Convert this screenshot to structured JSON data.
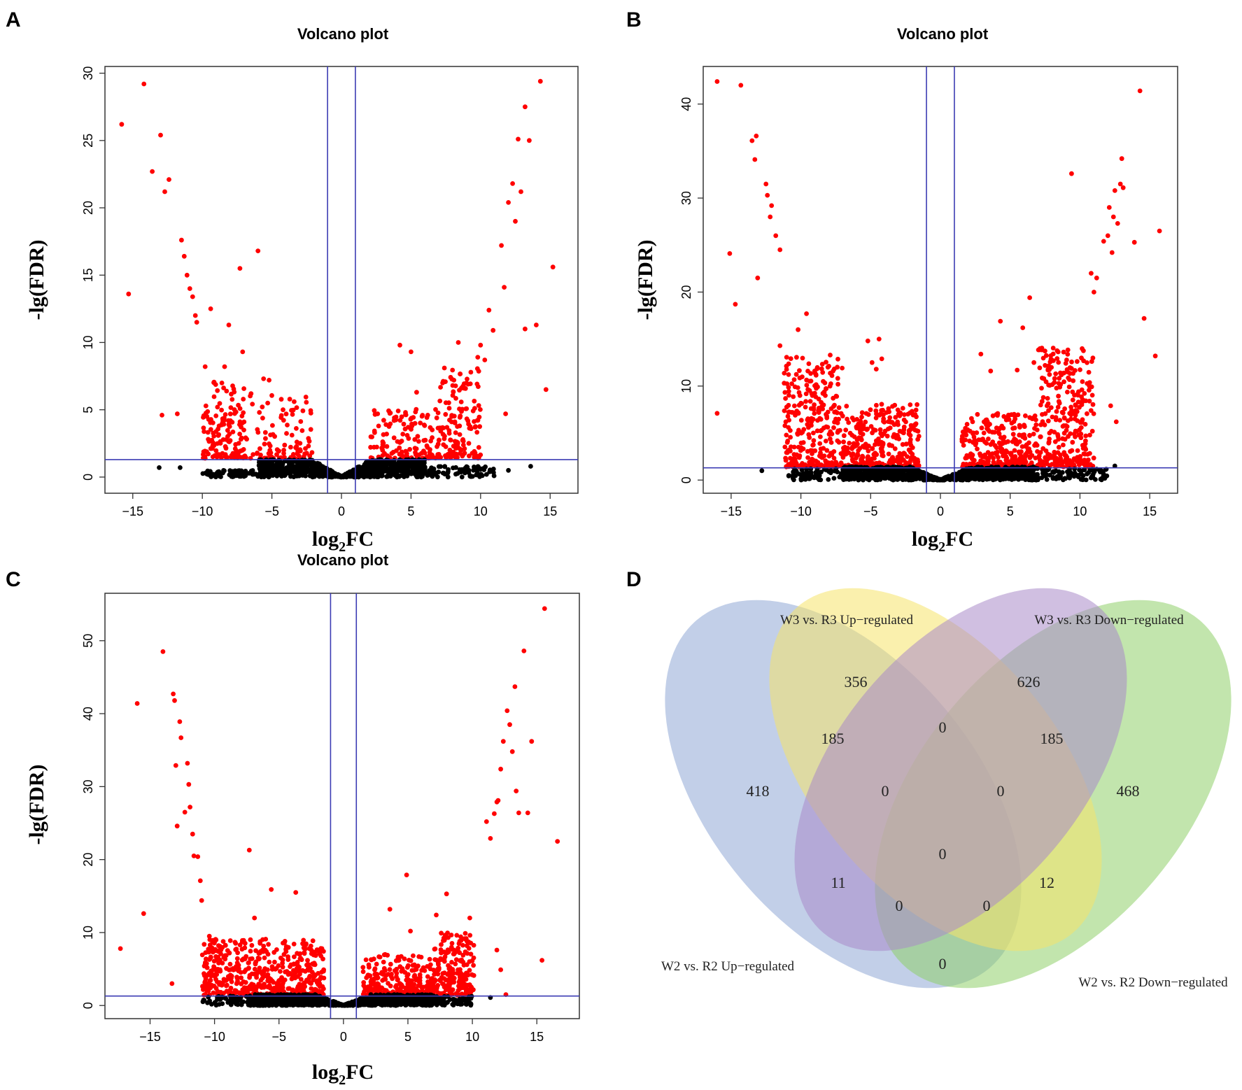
{
  "panels": {
    "A": "A",
    "B": "B",
    "C": "C",
    "D": "D"
  },
  "colors": {
    "significant": "#ff0000",
    "nonsignificant": "#000000",
    "threshold_line": "#3b3bb3",
    "venn_blue": "#8fa8d6",
    "venn_yellow": "#f5e46a",
    "venn_purple": "#a98ac9",
    "venn_green": "#8fcf6a"
  },
  "chart_data": [
    {
      "id": "A",
      "type": "scatter",
      "title": "Volcano plot",
      "xlabel": "log2FC",
      "xlabel_main": "log",
      "xlabel_sub": "2",
      "xlabel_suffix": "FC",
      "ylabel": "-lg(FDR)",
      "xlim": [
        -17,
        17
      ],
      "ylim": [
        -1.2,
        30.5
      ],
      "xticks": [
        -15,
        -10,
        -5,
        0,
        5,
        10,
        15
      ],
      "xtick_labels": [
        "−15",
        "−10",
        "−5",
        "0",
        "5",
        "10",
        "15"
      ],
      "yticks": [
        0,
        5,
        10,
        15,
        20,
        25,
        30
      ],
      "ytick_labels": [
        "0",
        "5",
        "10",
        "15",
        "20",
        "25",
        "30"
      ],
      "thresholds": {
        "x": [
          -1,
          1
        ],
        "y": 1.3
      },
      "highlights": [
        [
          -15.8,
          26.2
        ],
        [
          -14.2,
          29.2
        ],
        [
          -13.6,
          22.7
        ],
        [
          -13.0,
          25.4
        ],
        [
          -12.7,
          21.2
        ],
        [
          -12.4,
          22.1
        ],
        [
          -15.3,
          13.6
        ],
        [
          -12.9,
          4.6
        ],
        [
          -11.5,
          17.6
        ],
        [
          -11.3,
          16.4
        ],
        [
          -11.1,
          15.0
        ],
        [
          -10.9,
          14.0
        ],
        [
          -10.7,
          13.4
        ],
        [
          -10.5,
          12.0
        ],
        [
          -10.4,
          11.5
        ],
        [
          -9.8,
          8.2
        ],
        [
          -9.4,
          12.5
        ],
        [
          -8.4,
          8.2
        ],
        [
          -8.1,
          11.3
        ],
        [
          -7.3,
          15.5
        ],
        [
          -7.1,
          9.3
        ],
        [
          -6.0,
          16.8
        ],
        [
          -5.6,
          7.3
        ],
        [
          -5.2,
          7.2
        ],
        [
          -11.8,
          4.7
        ],
        [
          -6.5,
          6.2
        ],
        [
          -7.0,
          4.1
        ],
        [
          -5.9,
          4.8
        ],
        [
          -5.3,
          5.5
        ],
        [
          -4.2,
          5.0
        ],
        [
          -3.4,
          5.6
        ],
        [
          4.2,
          9.8
        ],
        [
          5.0,
          9.3
        ],
        [
          5.4,
          6.3
        ],
        [
          4.6,
          4.8
        ],
        [
          3.8,
          4.4
        ],
        [
          2.6,
          4.7
        ],
        [
          3.2,
          3.9
        ],
        [
          6.2,
          4.6
        ],
        [
          7.4,
          8.1
        ],
        [
          8.4,
          10.0
        ],
        [
          9.1,
          6.9
        ],
        [
          9.8,
          8.9
        ],
        [
          10.3,
          8.7
        ],
        [
          10.0,
          9.8
        ],
        [
          10.6,
          12.4
        ],
        [
          10.9,
          10.9
        ],
        [
          11.5,
          17.2
        ],
        [
          11.7,
          14.1
        ],
        [
          12.0,
          20.4
        ],
        [
          12.3,
          21.8
        ],
        [
          12.5,
          19.0
        ],
        [
          12.7,
          25.1
        ],
        [
          12.9,
          21.2
        ],
        [
          13.2,
          27.5
        ],
        [
          13.5,
          25.0
        ],
        [
          14.0,
          11.3
        ],
        [
          14.3,
          29.4
        ],
        [
          14.7,
          6.5
        ],
        [
          15.2,
          15.6
        ],
        [
          13.2,
          11.0
        ],
        [
          11.8,
          4.7
        ]
      ],
      "clusters": [
        {
          "x": [
            -10,
            -7
          ],
          "ymax": 7,
          "n": 140,
          "power": 1.6,
          "color": "significant"
        },
        {
          "x": [
            -7,
            -2
          ],
          "ymax": 6,
          "n": 95,
          "power": 2.2,
          "color": "significant"
        },
        {
          "x": [
            2,
            7
          ],
          "ymax": 5,
          "n": 130,
          "power": 2.2,
          "color": "significant"
        },
        {
          "x": [
            7,
            10
          ],
          "ymax": 8,
          "n": 140,
          "power": 1.6,
          "color": "significant"
        },
        {
          "x": [
            -6,
            6
          ],
          "ymin": 0,
          "ymax": 1.3,
          "n": 900,
          "power": 1.0,
          "color": "nonsignificant",
          "vshape": true
        },
        {
          "x": [
            -10,
            -6
          ],
          "ymin": 0,
          "ymax": 0.5,
          "n": 60,
          "power": 1.0,
          "color": "nonsignificant"
        },
        {
          "x": [
            6,
            11
          ],
          "ymin": 0,
          "ymax": 0.8,
          "n": 80,
          "power": 1.0,
          "color": "nonsignificant"
        }
      ],
      "extras": [
        [
          -13.1,
          0.7
        ],
        [
          -11.6,
          0.7
        ],
        [
          12.0,
          0.5
        ],
        [
          13.6,
          0.8
        ]
      ]
    },
    {
      "id": "B",
      "type": "scatter",
      "title": "Volcano plot",
      "xlabel": "log2FC",
      "xlabel_main": "log",
      "xlabel_sub": "2",
      "xlabel_suffix": "FC",
      "ylabel": "-lg(FDR)",
      "xlim": [
        -17,
        17
      ],
      "ylim": [
        -1.4,
        44
      ],
      "xticks": [
        -15,
        -10,
        -5,
        0,
        5,
        10,
        15
      ],
      "xtick_labels": [
        "−15",
        "−10",
        "−5",
        "0",
        "5",
        "10",
        "15"
      ],
      "yticks": [
        0,
        10,
        20,
        30,
        40
      ],
      "ytick_labels": [
        "0",
        "10",
        "20",
        "30",
        "40"
      ],
      "thresholds": {
        "x": [
          -1,
          1
        ],
        "y": 1.3
      },
      "highlights": [
        [
          -16.0,
          42.4
        ],
        [
          -14.3,
          42.0
        ],
        [
          -13.5,
          36.1
        ],
        [
          -13.2,
          36.6
        ],
        [
          -13.3,
          34.1
        ],
        [
          -12.5,
          31.5
        ],
        [
          -12.4,
          30.3
        ],
        [
          -12.2,
          28.0
        ],
        [
          -12.1,
          29.2
        ],
        [
          -11.8,
          26.0
        ],
        [
          -11.5,
          24.5
        ],
        [
          -15.1,
          24.1
        ],
        [
          -14.7,
          18.7
        ],
        [
          -13.1,
          21.5
        ],
        [
          -16.0,
          7.1
        ],
        [
          -11.5,
          14.3
        ],
        [
          -10.2,
          16.0
        ],
        [
          -9.6,
          17.7
        ],
        [
          -8.4,
          10.5
        ],
        [
          -7.9,
          13.3
        ],
        [
          -5.2,
          14.8
        ],
        [
          -4.9,
          12.5
        ],
        [
          -4.6,
          11.8
        ],
        [
          -4.4,
          15.0
        ],
        [
          -4.2,
          12.9
        ],
        [
          2.9,
          13.4
        ],
        [
          3.6,
          11.6
        ],
        [
          4.3,
          16.9
        ],
        [
          5.5,
          11.7
        ],
        [
          5.9,
          16.2
        ],
        [
          6.4,
          19.4
        ],
        [
          6.7,
          12.5
        ],
        [
          9.4,
          32.6
        ],
        [
          10.8,
          22.0
        ],
        [
          11.0,
          20.0
        ],
        [
          11.2,
          21.5
        ],
        [
          11.7,
          25.4
        ],
        [
          12.0,
          26.0
        ],
        [
          12.1,
          29.0
        ],
        [
          12.3,
          24.2
        ],
        [
          12.4,
          28.0
        ],
        [
          12.5,
          30.8
        ],
        [
          12.7,
          27.3
        ],
        [
          12.9,
          31.5
        ],
        [
          13.0,
          34.2
        ],
        [
          13.1,
          31.1
        ],
        [
          13.9,
          25.3
        ],
        [
          14.3,
          41.4
        ],
        [
          14.6,
          17.2
        ],
        [
          15.4,
          13.2
        ],
        [
          15.7,
          26.5
        ],
        [
          12.6,
          6.2
        ],
        [
          12.2,
          7.9
        ],
        [
          9.9,
          9.4
        ]
      ],
      "clusters": [
        {
          "x": [
            -11.2,
            -7
          ],
          "ymax": 13,
          "n": 300,
          "power": 1.7,
          "color": "significant"
        },
        {
          "x": [
            -7,
            -1.5
          ],
          "ymax": 8,
          "n": 330,
          "power": 2.0,
          "color": "significant"
        },
        {
          "x": [
            1.5,
            7
          ],
          "ymax": 7,
          "n": 330,
          "power": 2.0,
          "color": "significant"
        },
        {
          "x": [
            7,
            11
          ],
          "ymax": 14,
          "n": 300,
          "power": 1.7,
          "color": "significant"
        },
        {
          "x": [
            -7,
            7
          ],
          "ymin": 0,
          "ymax": 1.4,
          "n": 1100,
          "power": 1.0,
          "color": "nonsignificant",
          "vshape": true
        },
        {
          "x": [
            -11,
            -7
          ],
          "ymin": 0,
          "ymax": 1.2,
          "n": 70,
          "power": 1.0,
          "color": "nonsignificant"
        },
        {
          "x": [
            7,
            12
          ],
          "ymin": 0,
          "ymax": 1.2,
          "n": 90,
          "power": 1.0,
          "color": "nonsignificant"
        }
      ],
      "extras": [
        [
          -12.8,
          1.0
        ],
        [
          12.5,
          1.5
        ]
      ]
    },
    {
      "id": "C",
      "type": "scatter",
      "title": "Volcano plot",
      "xlabel": "log2FC",
      "xlabel_main": "log",
      "xlabel_sub": "2",
      "xlabel_suffix": "FC",
      "ylabel": "-lg(FDR)",
      "xlim": [
        -18.5,
        18.3
      ],
      "ylim": [
        -1.8,
        56.5
      ],
      "xticks": [
        -15,
        -10,
        -5,
        0,
        5,
        10,
        15
      ],
      "xtick_labels": [
        "−15",
        "−10",
        "−5",
        "0",
        "5",
        "10",
        "15"
      ],
      "yticks": [
        0,
        10,
        20,
        30,
        40,
        50
      ],
      "ytick_labels": [
        "0",
        "10",
        "20",
        "30",
        "40",
        "50"
      ],
      "thresholds": {
        "x": [
          -1,
          1
        ],
        "y": 1.3
      },
      "highlights": [
        [
          -17.3,
          7.8
        ],
        [
          -16.0,
          41.4
        ],
        [
          -15.5,
          12.6
        ],
        [
          -14.0,
          48.5
        ],
        [
          -13.2,
          42.7
        ],
        [
          -13.1,
          41.8
        ],
        [
          -13.0,
          32.9
        ],
        [
          -12.9,
          24.6
        ],
        [
          -12.7,
          38.9
        ],
        [
          -12.6,
          36.7
        ],
        [
          -13.3,
          3.0
        ],
        [
          -12.3,
          26.5
        ],
        [
          -12.1,
          33.2
        ],
        [
          -12.0,
          30.3
        ],
        [
          -11.9,
          27.2
        ],
        [
          -11.7,
          23.5
        ],
        [
          -11.6,
          20.5
        ],
        [
          -11.3,
          20.4
        ],
        [
          -11.1,
          17.1
        ],
        [
          -11.0,
          14.4
        ],
        [
          -10.4,
          9.5
        ],
        [
          -7.3,
          21.3
        ],
        [
          -6.9,
          12.0
        ],
        [
          -5.6,
          15.9
        ],
        [
          -3.7,
          15.5
        ],
        [
          3.6,
          13.2
        ],
        [
          4.9,
          17.9
        ],
        [
          5.2,
          10.2
        ],
        [
          7.2,
          12.4
        ],
        [
          8.0,
          15.3
        ],
        [
          9.8,
          12.0
        ],
        [
          11.1,
          25.2
        ],
        [
          11.4,
          22.9
        ],
        [
          11.7,
          26.3
        ],
        [
          11.9,
          27.9
        ],
        [
          12.0,
          28.1
        ],
        [
          12.2,
          32.4
        ],
        [
          12.4,
          36.2
        ],
        [
          12.7,
          40.4
        ],
        [
          12.9,
          38.5
        ],
        [
          13.1,
          34.8
        ],
        [
          13.3,
          43.7
        ],
        [
          13.4,
          29.4
        ],
        [
          13.6,
          26.4
        ],
        [
          14.0,
          48.6
        ],
        [
          14.3,
          26.4
        ],
        [
          14.6,
          36.2
        ],
        [
          15.4,
          6.2
        ],
        [
          15.6,
          54.4
        ],
        [
          16.6,
          22.5
        ],
        [
          12.2,
          4.9
        ],
        [
          11.9,
          7.6
        ],
        [
          12.6,
          1.5
        ]
      ],
      "clusters": [
        {
          "x": [
            -11,
            -7
          ],
          "ymax": 9,
          "n": 220,
          "power": 1.6,
          "color": "significant"
        },
        {
          "x": [
            -7,
            -1.5
          ],
          "ymax": 9,
          "n": 320,
          "power": 2.0,
          "color": "significant"
        },
        {
          "x": [
            1.5,
            7
          ],
          "ymax": 7,
          "n": 300,
          "power": 2.0,
          "color": "significant"
        },
        {
          "x": [
            7,
            10.2
          ],
          "ymax": 10,
          "n": 220,
          "power": 1.6,
          "color": "significant"
        },
        {
          "x": [
            -7,
            7
          ],
          "ymin": 0,
          "ymax": 1.5,
          "n": 1100,
          "power": 1.0,
          "color": "nonsignificant",
          "vshape": true
        },
        {
          "x": [
            -11,
            -7
          ],
          "ymin": 0,
          "ymax": 1.3,
          "n": 70,
          "power": 1.0,
          "color": "nonsignificant"
        },
        {
          "x": [
            7,
            10
          ],
          "ymin": 0,
          "ymax": 1.3,
          "n": 70,
          "power": 1.0,
          "color": "nonsignificant"
        }
      ],
      "extras": [
        [
          11.4,
          1.1
        ]
      ]
    },
    {
      "id": "D",
      "type": "venn",
      "sets": [
        {
          "name": "W2 vs. R2 Up−regulated",
          "color": "venn_blue"
        },
        {
          "name": "W3 vs. R3 Up−regulated",
          "color": "venn_yellow"
        },
        {
          "name": "W3 vs. R3 Down−regulated",
          "color": "venn_purple"
        },
        {
          "name": "W2 vs. R2 Down−regulated",
          "color": "venn_green"
        }
      ],
      "counts": {
        "w2up_only": "418",
        "w3up_only": "356",
        "w3down_only": "626",
        "w2down_only": "468",
        "w2up_w3up": "185",
        "w3up_w3down": "0",
        "w3down_w2down": "185",
        "w2up_w3up_w3down": "0",
        "w3up_w3down_w2down": "0",
        "all_four": "0",
        "w2up_w3down": "11",
        "w3up_w2down": "12",
        "w2up_w3down_w2down": "0",
        "w2up_w3up_w2down": "0",
        "w2up_w2down": "0"
      }
    }
  ]
}
